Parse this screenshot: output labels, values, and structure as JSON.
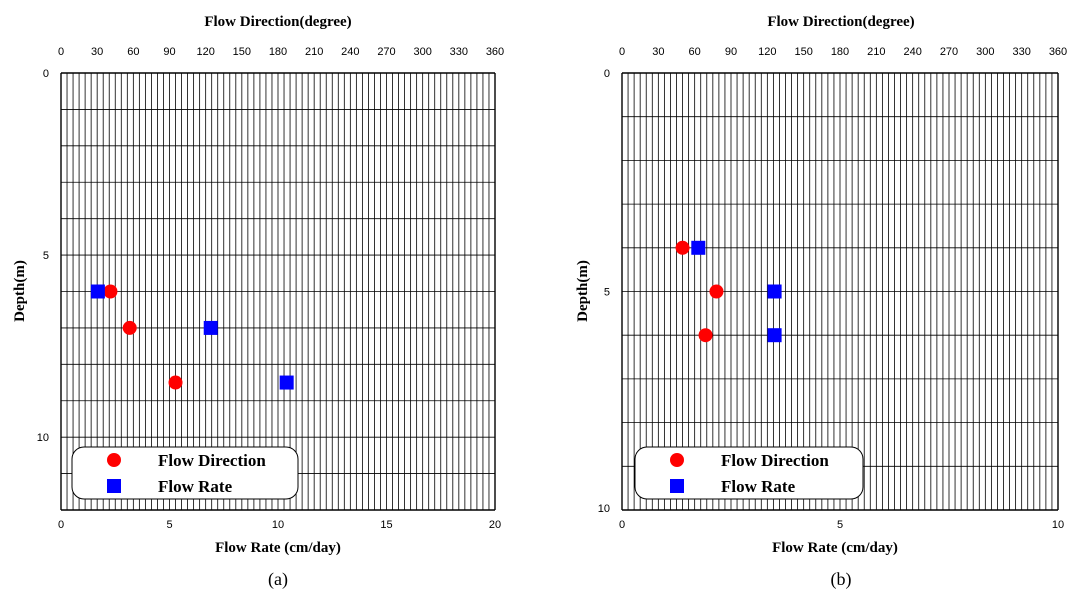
{
  "chart_data": [
    {
      "type": "scatter",
      "caption": "(a)",
      "top_axis_title": "Flow Direction(degree)",
      "bottom_axis_title": "Flow Rate (cm/day)",
      "ylabel": "Depth(m)",
      "top_xlim": [
        0,
        360
      ],
      "top_ticks": [
        "0",
        "30",
        "60",
        "90",
        "120",
        "150",
        "180",
        "210",
        "240",
        "270",
        "300",
        "330",
        "360"
      ],
      "bottom_xlim": [
        0,
        20
      ],
      "bottom_ticks": [
        "0",
        "5",
        "10",
        "15",
        "20"
      ],
      "ylim": [
        0,
        12
      ],
      "y_ticks": [
        "0",
        "5",
        "10"
      ],
      "grid": true,
      "legend": {
        "placement": "bottom-left",
        "entries": [
          {
            "label": "Flow Direction",
            "marker": "circle",
            "color": "#ff0000"
          },
          {
            "label": "Flow Rate",
            "marker": "square",
            "color": "#0000ff"
          }
        ]
      },
      "series": [
        {
          "name": "Flow Direction",
          "axis": "top",
          "marker": "circle",
          "color": "#ff0000",
          "points": [
            {
              "x": 41,
              "y": 6
            },
            {
              "x": 57,
              "y": 7
            },
            {
              "x": 95,
              "y": 8.5
            }
          ]
        },
        {
          "name": "Flow Rate",
          "axis": "bottom",
          "marker": "square",
          "color": "#0000ff",
          "points": [
            {
              "x": 1.7,
              "y": 6
            },
            {
              "x": 6.9,
              "y": 7
            },
            {
              "x": 10.4,
              "y": 8.5
            }
          ]
        }
      ]
    },
    {
      "type": "scatter",
      "caption": "(b)",
      "top_axis_title": "Flow Direction(degree)",
      "bottom_axis_title": "Flow Rate (cm/day)",
      "ylabel": "Depth(m)",
      "top_xlim": [
        0,
        360
      ],
      "top_ticks": [
        "0",
        "30",
        "60",
        "90",
        "120",
        "150",
        "180",
        "210",
        "240",
        "270",
        "300",
        "330",
        "360"
      ],
      "bottom_xlim": [
        0,
        10
      ],
      "bottom_ticks": [
        "0",
        "5",
        "10"
      ],
      "ylim": [
        0,
        10
      ],
      "y_ticks": [
        "0",
        "5",
        "10"
      ],
      "grid": true,
      "legend": {
        "placement": "bottom-left",
        "entries": [
          {
            "label": "Flow Direction",
            "marker": "circle",
            "color": "#ff0000"
          },
          {
            "label": "Flow Rate",
            "marker": "square",
            "color": "#0000ff"
          }
        ]
      },
      "series": [
        {
          "name": "Flow Direction",
          "axis": "top",
          "marker": "circle",
          "color": "#ff0000",
          "points": [
            {
              "x": 50,
              "y": 4
            },
            {
              "x": 78,
              "y": 5
            },
            {
              "x": 69,
              "y": 6
            }
          ]
        },
        {
          "name": "Flow Rate",
          "axis": "bottom",
          "marker": "square",
          "color": "#0000ff",
          "points": [
            {
              "x": 1.75,
              "y": 4
            },
            {
              "x": 3.5,
              "y": 5
            },
            {
              "x": 3.5,
              "y": 6
            }
          ]
        }
      ]
    }
  ]
}
